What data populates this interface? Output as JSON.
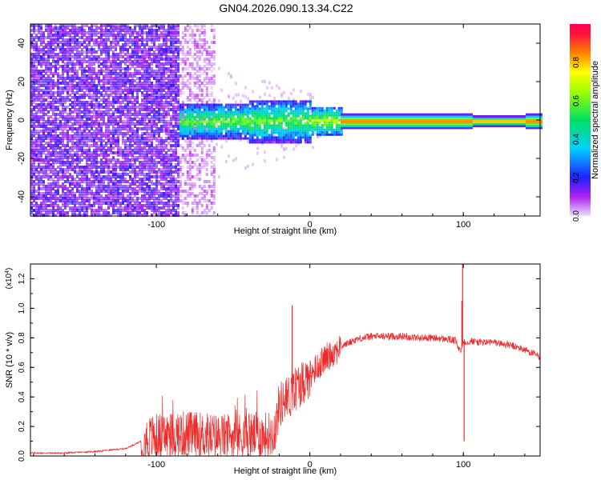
{
  "title": "GN04.2026.090.13.34.C22",
  "colors": {
    "line": "#ee2b2b",
    "scatter_dense": "#4000d0",
    "scatter_sparse": "#b89cf0",
    "background": "#ffffff"
  },
  "chart_data": [
    {
      "type": "heatmap",
      "title": "GN04.2026.090.13.34.C22",
      "xlabel": "Height of straight line (km)",
      "ylabel": "Frequency (Hz)",
      "xlim": [
        -182,
        150
      ],
      "ylim": [
        -50,
        50
      ],
      "x_ticks": [
        -100,
        0,
        100
      ],
      "y_ticks": [
        40,
        20,
        0,
        -20,
        -40
      ],
      "colorbar": {
        "label": "Normalized spectral amplitude",
        "range": [
          0,
          1
        ],
        "ticks": [
          "0.0",
          "0.2",
          "0.4",
          "0.6",
          "0.8"
        ]
      },
      "regions": [
        {
          "x_range": [
            -182,
            -85
          ],
          "freq_halfwidth": 50,
          "amplitude": 0.05,
          "density": "dense"
        },
        {
          "x_range": [
            -85,
            -63
          ],
          "freq_halfwidth": 50,
          "amplitude": 0.02,
          "density": "sparse"
        },
        {
          "x_range": [
            -85,
            20
          ],
          "freq_halfwidth": 10,
          "amplitude": 0.3,
          "density": "band"
        },
        {
          "x_range": [
            20,
            150
          ],
          "freq_halfwidth": 3,
          "amplitude": 0.8,
          "density": "narrow"
        }
      ]
    },
    {
      "type": "line",
      "xlabel": "Height of straight line (km)",
      "ylabel": "SNR (10 * v/v)",
      "y_multiplier": "(x10",
      "y_multiplier_exp": "4",
      "y_multiplier_close": ")",
      "xlim": [
        -182,
        150
      ],
      "ylim": [
        0,
        1.3
      ],
      "x_ticks": [
        -100,
        0,
        100
      ],
      "y_ticks": [
        "0.0",
        "0.2",
        "0.4",
        "0.6",
        "0.8",
        "1.0",
        "1.2"
      ],
      "series": [
        {
          "x": [
            -182,
            -160,
            -140,
            -120,
            -110,
            -100,
            -90,
            -80,
            -70,
            -60,
            -50,
            -40,
            -30,
            -25,
            -22,
            -20,
            -15,
            -10,
            -5,
            0,
            10,
            20,
            30,
            40,
            50,
            60,
            70,
            80,
            90,
            95,
            98,
            100,
            102,
            105,
            110,
            120,
            130,
            140,
            150
          ],
          "y": [
            0.02,
            0.02,
            0.03,
            0.05,
            0.1,
            0.13,
            0.14,
            0.15,
            0.14,
            0.13,
            0.13,
            0.14,
            0.14,
            0.15,
            0.2,
            0.35,
            0.38,
            0.45,
            0.5,
            0.55,
            0.66,
            0.74,
            0.79,
            0.81,
            0.81,
            0.81,
            0.8,
            0.8,
            0.79,
            0.78,
            0.7,
            0.78,
            0.77,
            0.78,
            0.77,
            0.77,
            0.75,
            0.72,
            0.67
          ],
          "spikes": [
            {
              "x": -11.5,
              "y": 1.02
            },
            {
              "x": 99.5,
              "y": 1.3
            },
            {
              "x": 99.0,
              "y": 1.05
            },
            {
              "x": 100.5,
              "y": 0.1
            }
          ]
        }
      ]
    }
  ]
}
